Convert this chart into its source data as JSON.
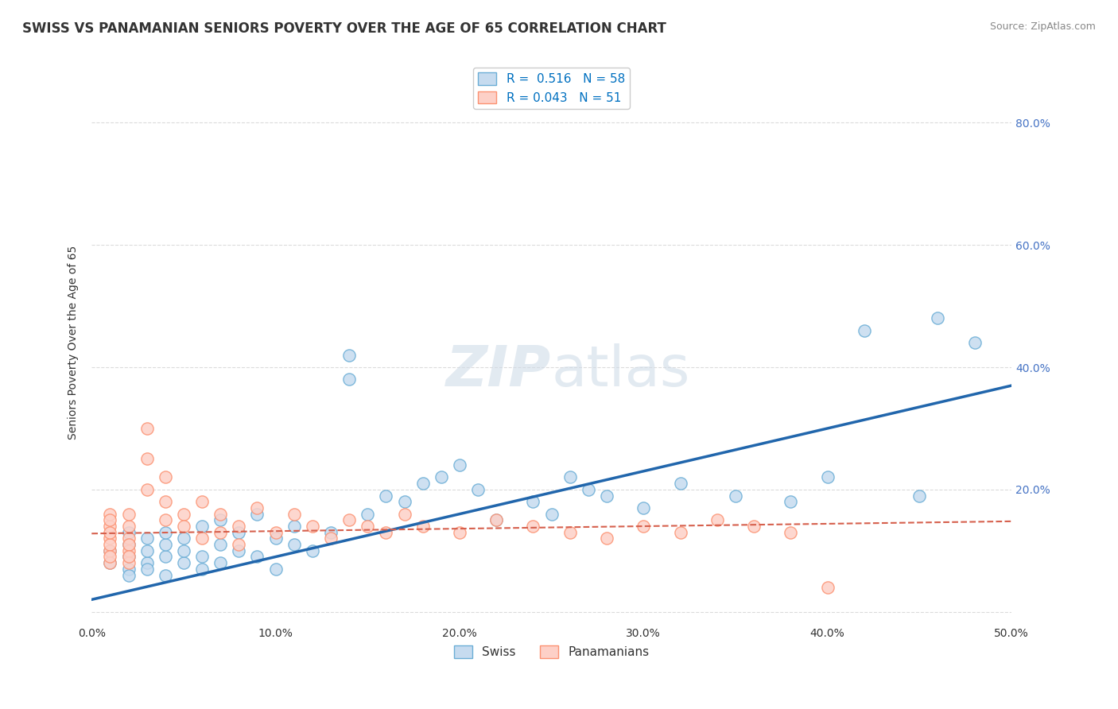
{
  "title": "SWISS VS PANAMANIAN SENIORS POVERTY OVER THE AGE OF 65 CORRELATION CHART",
  "source": "Source: ZipAtlas.com",
  "ylabel": "Seniors Poverty Over the Age of 65",
  "xlim": [
    0.0,
    0.5
  ],
  "ylim": [
    -0.02,
    0.9
  ],
  "yticks": [
    0.0,
    0.2,
    0.4,
    0.6,
    0.8
  ],
  "ytick_labels": [
    "",
    "20.0%",
    "40.0%",
    "60.0%",
    "80.0%"
  ],
  "legend_r_swiss": "R =  0.516",
  "legend_n_swiss": "N = 58",
  "legend_r_pan": "R = 0.043",
  "legend_n_pan": "N = 51",
  "swiss_color": "#6baed6",
  "swiss_color_light": "#c6dbef",
  "pan_color": "#fc9272",
  "pan_color_light": "#fdd0c7",
  "line_swiss": "#2166ac",
  "line_pan": "#d6604d",
  "swiss_x": [
    0.01,
    0.01,
    0.02,
    0.02,
    0.02,
    0.02,
    0.02,
    0.03,
    0.03,
    0.03,
    0.03,
    0.04,
    0.04,
    0.04,
    0.04,
    0.05,
    0.05,
    0.05,
    0.06,
    0.06,
    0.06,
    0.07,
    0.07,
    0.07,
    0.08,
    0.08,
    0.09,
    0.09,
    0.1,
    0.1,
    0.11,
    0.11,
    0.12,
    0.13,
    0.14,
    0.14,
    0.15,
    0.16,
    0.17,
    0.18,
    0.19,
    0.2,
    0.21,
    0.22,
    0.24,
    0.25,
    0.26,
    0.27,
    0.28,
    0.3,
    0.32,
    0.35,
    0.38,
    0.4,
    0.42,
    0.45,
    0.46,
    0.48
  ],
  "swiss_y": [
    0.08,
    0.1,
    0.07,
    0.09,
    0.11,
    0.13,
    0.06,
    0.08,
    0.1,
    0.12,
    0.07,
    0.09,
    0.11,
    0.06,
    0.13,
    0.08,
    0.1,
    0.12,
    0.09,
    0.07,
    0.14,
    0.15,
    0.11,
    0.08,
    0.1,
    0.13,
    0.09,
    0.16,
    0.12,
    0.07,
    0.11,
    0.14,
    0.1,
    0.13,
    0.42,
    0.38,
    0.16,
    0.19,
    0.18,
    0.21,
    0.22,
    0.24,
    0.2,
    0.15,
    0.18,
    0.16,
    0.22,
    0.2,
    0.19,
    0.17,
    0.21,
    0.19,
    0.18,
    0.22,
    0.46,
    0.19,
    0.48,
    0.44
  ],
  "pan_x": [
    0.01,
    0.01,
    0.01,
    0.01,
    0.01,
    0.01,
    0.01,
    0.01,
    0.01,
    0.02,
    0.02,
    0.02,
    0.02,
    0.02,
    0.02,
    0.02,
    0.03,
    0.03,
    0.03,
    0.04,
    0.04,
    0.04,
    0.05,
    0.05,
    0.06,
    0.06,
    0.07,
    0.07,
    0.08,
    0.08,
    0.09,
    0.1,
    0.11,
    0.12,
    0.13,
    0.14,
    0.15,
    0.16,
    0.17,
    0.18,
    0.2,
    0.22,
    0.24,
    0.26,
    0.28,
    0.3,
    0.32,
    0.34,
    0.36,
    0.38,
    0.4
  ],
  "pan_y": [
    0.12,
    0.14,
    0.1,
    0.08,
    0.16,
    0.11,
    0.13,
    0.09,
    0.15,
    0.1,
    0.12,
    0.08,
    0.14,
    0.11,
    0.16,
    0.09,
    0.3,
    0.25,
    0.2,
    0.18,
    0.22,
    0.15,
    0.16,
    0.14,
    0.12,
    0.18,
    0.13,
    0.16,
    0.14,
    0.11,
    0.17,
    0.13,
    0.16,
    0.14,
    0.12,
    0.15,
    0.14,
    0.13,
    0.16,
    0.14,
    0.13,
    0.15,
    0.14,
    0.13,
    0.12,
    0.14,
    0.13,
    0.15,
    0.14,
    0.13,
    0.04
  ],
  "swiss_line_x": [
    0.0,
    0.5
  ],
  "swiss_line_y": [
    0.02,
    0.37
  ],
  "pan_line_x": [
    0.0,
    0.5
  ],
  "pan_line_y": [
    0.128,
    0.148
  ]
}
